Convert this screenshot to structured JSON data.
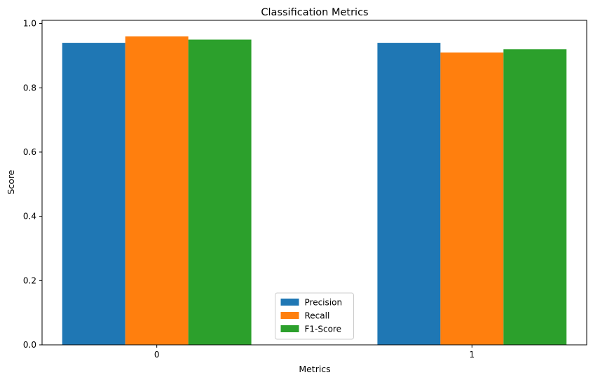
{
  "chart_data": {
    "type": "bar",
    "title": "Classification Metrics",
    "xlabel": "Metrics",
    "ylabel": "Score",
    "categories": [
      "0",
      "1"
    ],
    "series": [
      {
        "name": "Precision",
        "color": "#1f77b4",
        "values": [
          0.94,
          0.94
        ]
      },
      {
        "name": "Recall",
        "color": "#ff7f0e",
        "values": [
          0.96,
          0.91
        ]
      },
      {
        "name": "F1-Score",
        "color": "#2ca02c",
        "values": [
          0.95,
          0.92
        ]
      }
    ],
    "ylim": [
      0,
      1.01
    ],
    "yticks": [
      0.0,
      0.2,
      0.4,
      0.6,
      0.8,
      1.0
    ],
    "ytick_labels": [
      "0.0",
      "0.2",
      "0.4",
      "0.6",
      "0.8",
      "1.0"
    ],
    "grid": false,
    "legend": "bottom-center"
  }
}
